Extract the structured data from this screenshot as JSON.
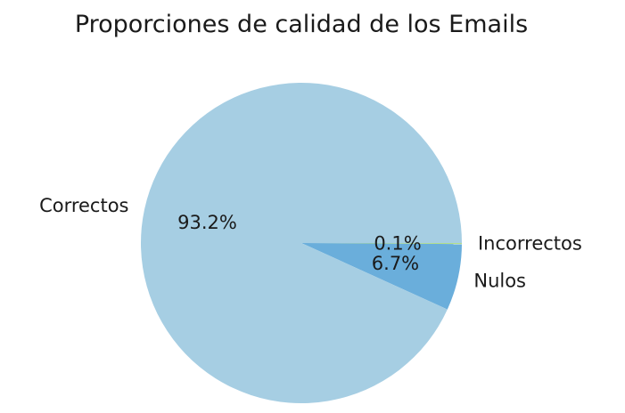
{
  "chart_data": {
    "type": "pie",
    "title": "Proporciones de calidad de los Emails",
    "start_angle_deg": 0,
    "direction": "clockwise-visual",
    "slices": [
      {
        "label": "Incorrectos",
        "value": 0.1,
        "pct_label": "0.1%",
        "color": "#b2df8a"
      },
      {
        "label": "Nulos",
        "value": 6.7,
        "pct_label": "6.7%",
        "color": "#6aaedb"
      },
      {
        "label": "Correctos",
        "value": 93.2,
        "pct_label": "93.2%",
        "color": "#a6cee3"
      }
    ]
  }
}
